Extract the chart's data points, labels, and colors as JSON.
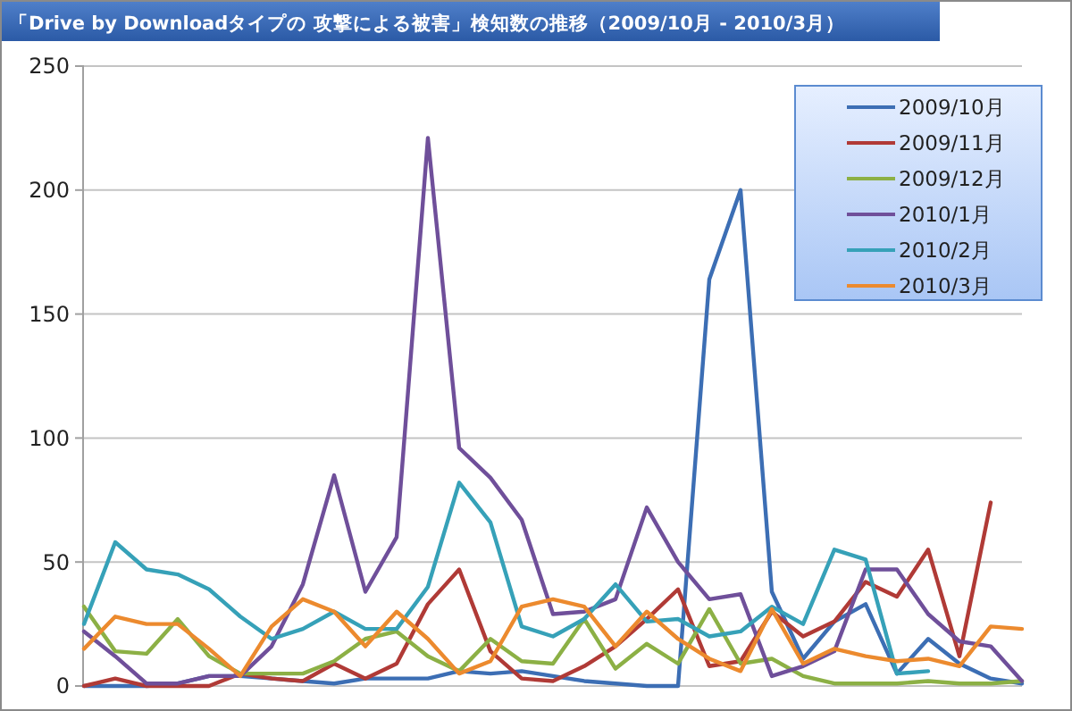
{
  "chart_data": {
    "type": "line",
    "title": "「Drive  by Downloadタイプの 攻撃による被害」検知数の推移（2009/10月 - 2010/3月）",
    "categories": [
      null,
      null,
      null,
      null,
      null,
      null,
      null,
      null,
      null,
      null,
      null,
      null,
      null,
      null,
      null,
      null,
      null,
      null,
      null,
      null,
      null,
      null,
      null,
      null,
      null,
      null,
      null,
      null,
      null,
      null,
      null
    ],
    "series": [
      {
        "name": "2009/10月",
        "color": "#3c6eb4",
        "values": [
          0,
          0,
          0,
          1,
          4,
          4,
          3,
          2,
          1,
          3,
          3,
          3,
          6,
          5,
          6,
          4,
          2,
          1,
          0,
          0,
          164,
          200,
          38,
          11,
          26,
          33,
          5,
          19,
          9,
          3,
          1
        ]
      },
      {
        "name": "2009/11月",
        "color": "#b03a36",
        "values": [
          0,
          3,
          0,
          0,
          0,
          5,
          3,
          2,
          9,
          3,
          9,
          33,
          47,
          14,
          3,
          2,
          8,
          16,
          27,
          39,
          8,
          10,
          30,
          20,
          26,
          42,
          36,
          55,
          12,
          74,
          null
        ]
      },
      {
        "name": "2009/12月",
        "color": "#8cb045",
        "values": [
          32,
          14,
          13,
          27,
          12,
          5,
          5,
          5,
          10,
          19,
          22,
          12,
          6,
          19,
          10,
          9,
          27,
          7,
          17,
          9,
          31,
          9,
          11,
          4,
          1,
          1,
          1,
          2,
          1,
          1,
          2
        ]
      },
      {
        "name": "2010/1月",
        "color": "#6f4f9a",
        "values": [
          22,
          12,
          1,
          1,
          4,
          4,
          16,
          41,
          85,
          38,
          60,
          221,
          96,
          84,
          67,
          29,
          30,
          35,
          72,
          50,
          35,
          37,
          4,
          8,
          14,
          47,
          47,
          29,
          18,
          16,
          2
        ]
      },
      {
        "name": "2010/2月",
        "color": "#36a1b8",
        "values": [
          25,
          58,
          47,
          45,
          39,
          28,
          19,
          23,
          30,
          23,
          23,
          40,
          82,
          66,
          24,
          20,
          27,
          41,
          26,
          27,
          20,
          22,
          32,
          25,
          55,
          51,
          5,
          6,
          null,
          null,
          null
        ]
      },
      {
        "name": "2010/3月",
        "color": "#ec8a2e",
        "values": [
          15,
          28,
          25,
          25,
          15,
          4,
          24,
          35,
          30,
          16,
          30,
          19,
          5,
          10,
          32,
          35,
          32,
          16,
          30,
          19,
          11,
          6,
          31,
          9,
          15,
          12,
          10,
          11,
          8,
          24,
          23
        ]
      }
    ],
    "ylim": [
      0,
      250
    ],
    "yticks": [
      0,
      50,
      100,
      150,
      200,
      250
    ],
    "grid": "y",
    "legend": "top right",
    "marker": "none",
    "line_style": "solid"
  }
}
